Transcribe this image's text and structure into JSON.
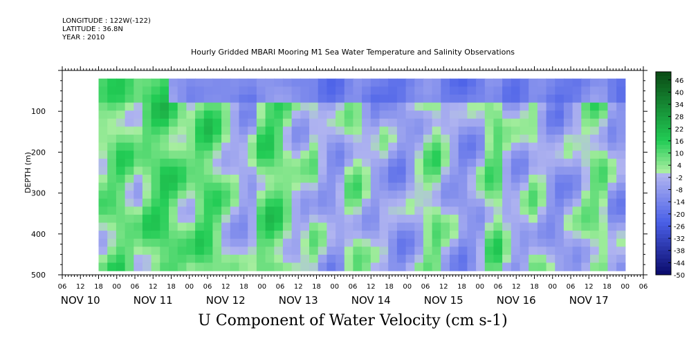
{
  "header": {
    "longitude": "LONGITUDE : 122W(-122)",
    "latitude": "LATITUDE : 36.8N",
    "year": "YEAR : 2010"
  },
  "title": "Hourly Gridded MBARI Mooring M1 Sea Water Temperature and Salinity Observations",
  "footer_title": "U Component of Water Velocity (cm s-1)",
  "chart_data": {
    "type": "heatmap",
    "title": "Hourly Gridded MBARI Mooring M1 Sea Water Temperature and Salinity Observations",
    "ylabel": "DEPTH (m)",
    "xlabel": "",
    "y_ticks": [
      100,
      200,
      300,
      400,
      500
    ],
    "ylim": [
      500,
      0
    ],
    "x_hour_labels": [
      "06",
      "12",
      "18",
      "00",
      "06",
      "12",
      "18",
      "00",
      "06",
      "12",
      "18",
      "00",
      "06",
      "12",
      "18",
      "00",
      "06",
      "12",
      "18",
      "00",
      "06",
      "12",
      "18",
      "00",
      "06",
      "12",
      "18",
      "00",
      "06",
      "12",
      "18",
      "00",
      "06"
    ],
    "date_labels": [
      "NOV 10",
      "NOV 11",
      "NOV 12",
      "NOV 13",
      "NOV 14",
      "NOV 15",
      "NOV 16",
      "NOV 17"
    ],
    "data_start_hour": 12,
    "data_end_hour": 186,
    "depth_range": [
      20,
      490
    ],
    "colorbar": {
      "min": -50,
      "max": 50,
      "step": 2,
      "labels": [
        "46",
        "40",
        "34",
        "28",
        "22",
        "16",
        "10",
        "4",
        "-2",
        "-8",
        "-14",
        "-20",
        "-26",
        "-32",
        "-38",
        "-44",
        "-50"
      ]
    },
    "colors": {
      "strong_positive": "#0a4a14",
      "positive": "#22cc55",
      "near_zero_positive": "#a8eea0",
      "near_zero_negative": "#b0b4f0",
      "negative": "#4a60e8",
      "strong_negative": "#0a0a6a"
    },
    "column_mean_profile_cm_s": [
      4,
      8,
      10,
      6,
      2,
      8,
      12,
      14,
      10,
      6,
      4,
      10,
      12,
      8,
      2,
      -2,
      -6,
      -4,
      8,
      12,
      10,
      4,
      -2,
      -2,
      2,
      -4,
      -8,
      -6,
      2,
      4,
      -2,
      -6,
      -4,
      -8,
      -10,
      -6,
      -2,
      4,
      6,
      -2,
      -6,
      -10,
      -8,
      -4,
      6,
      8,
      -2,
      -6,
      -4,
      2,
      -2,
      -8,
      -10,
      -6,
      -4,
      2,
      6,
      4,
      -6,
      -8
    ],
    "surface_layer_cm_s": -14
  }
}
